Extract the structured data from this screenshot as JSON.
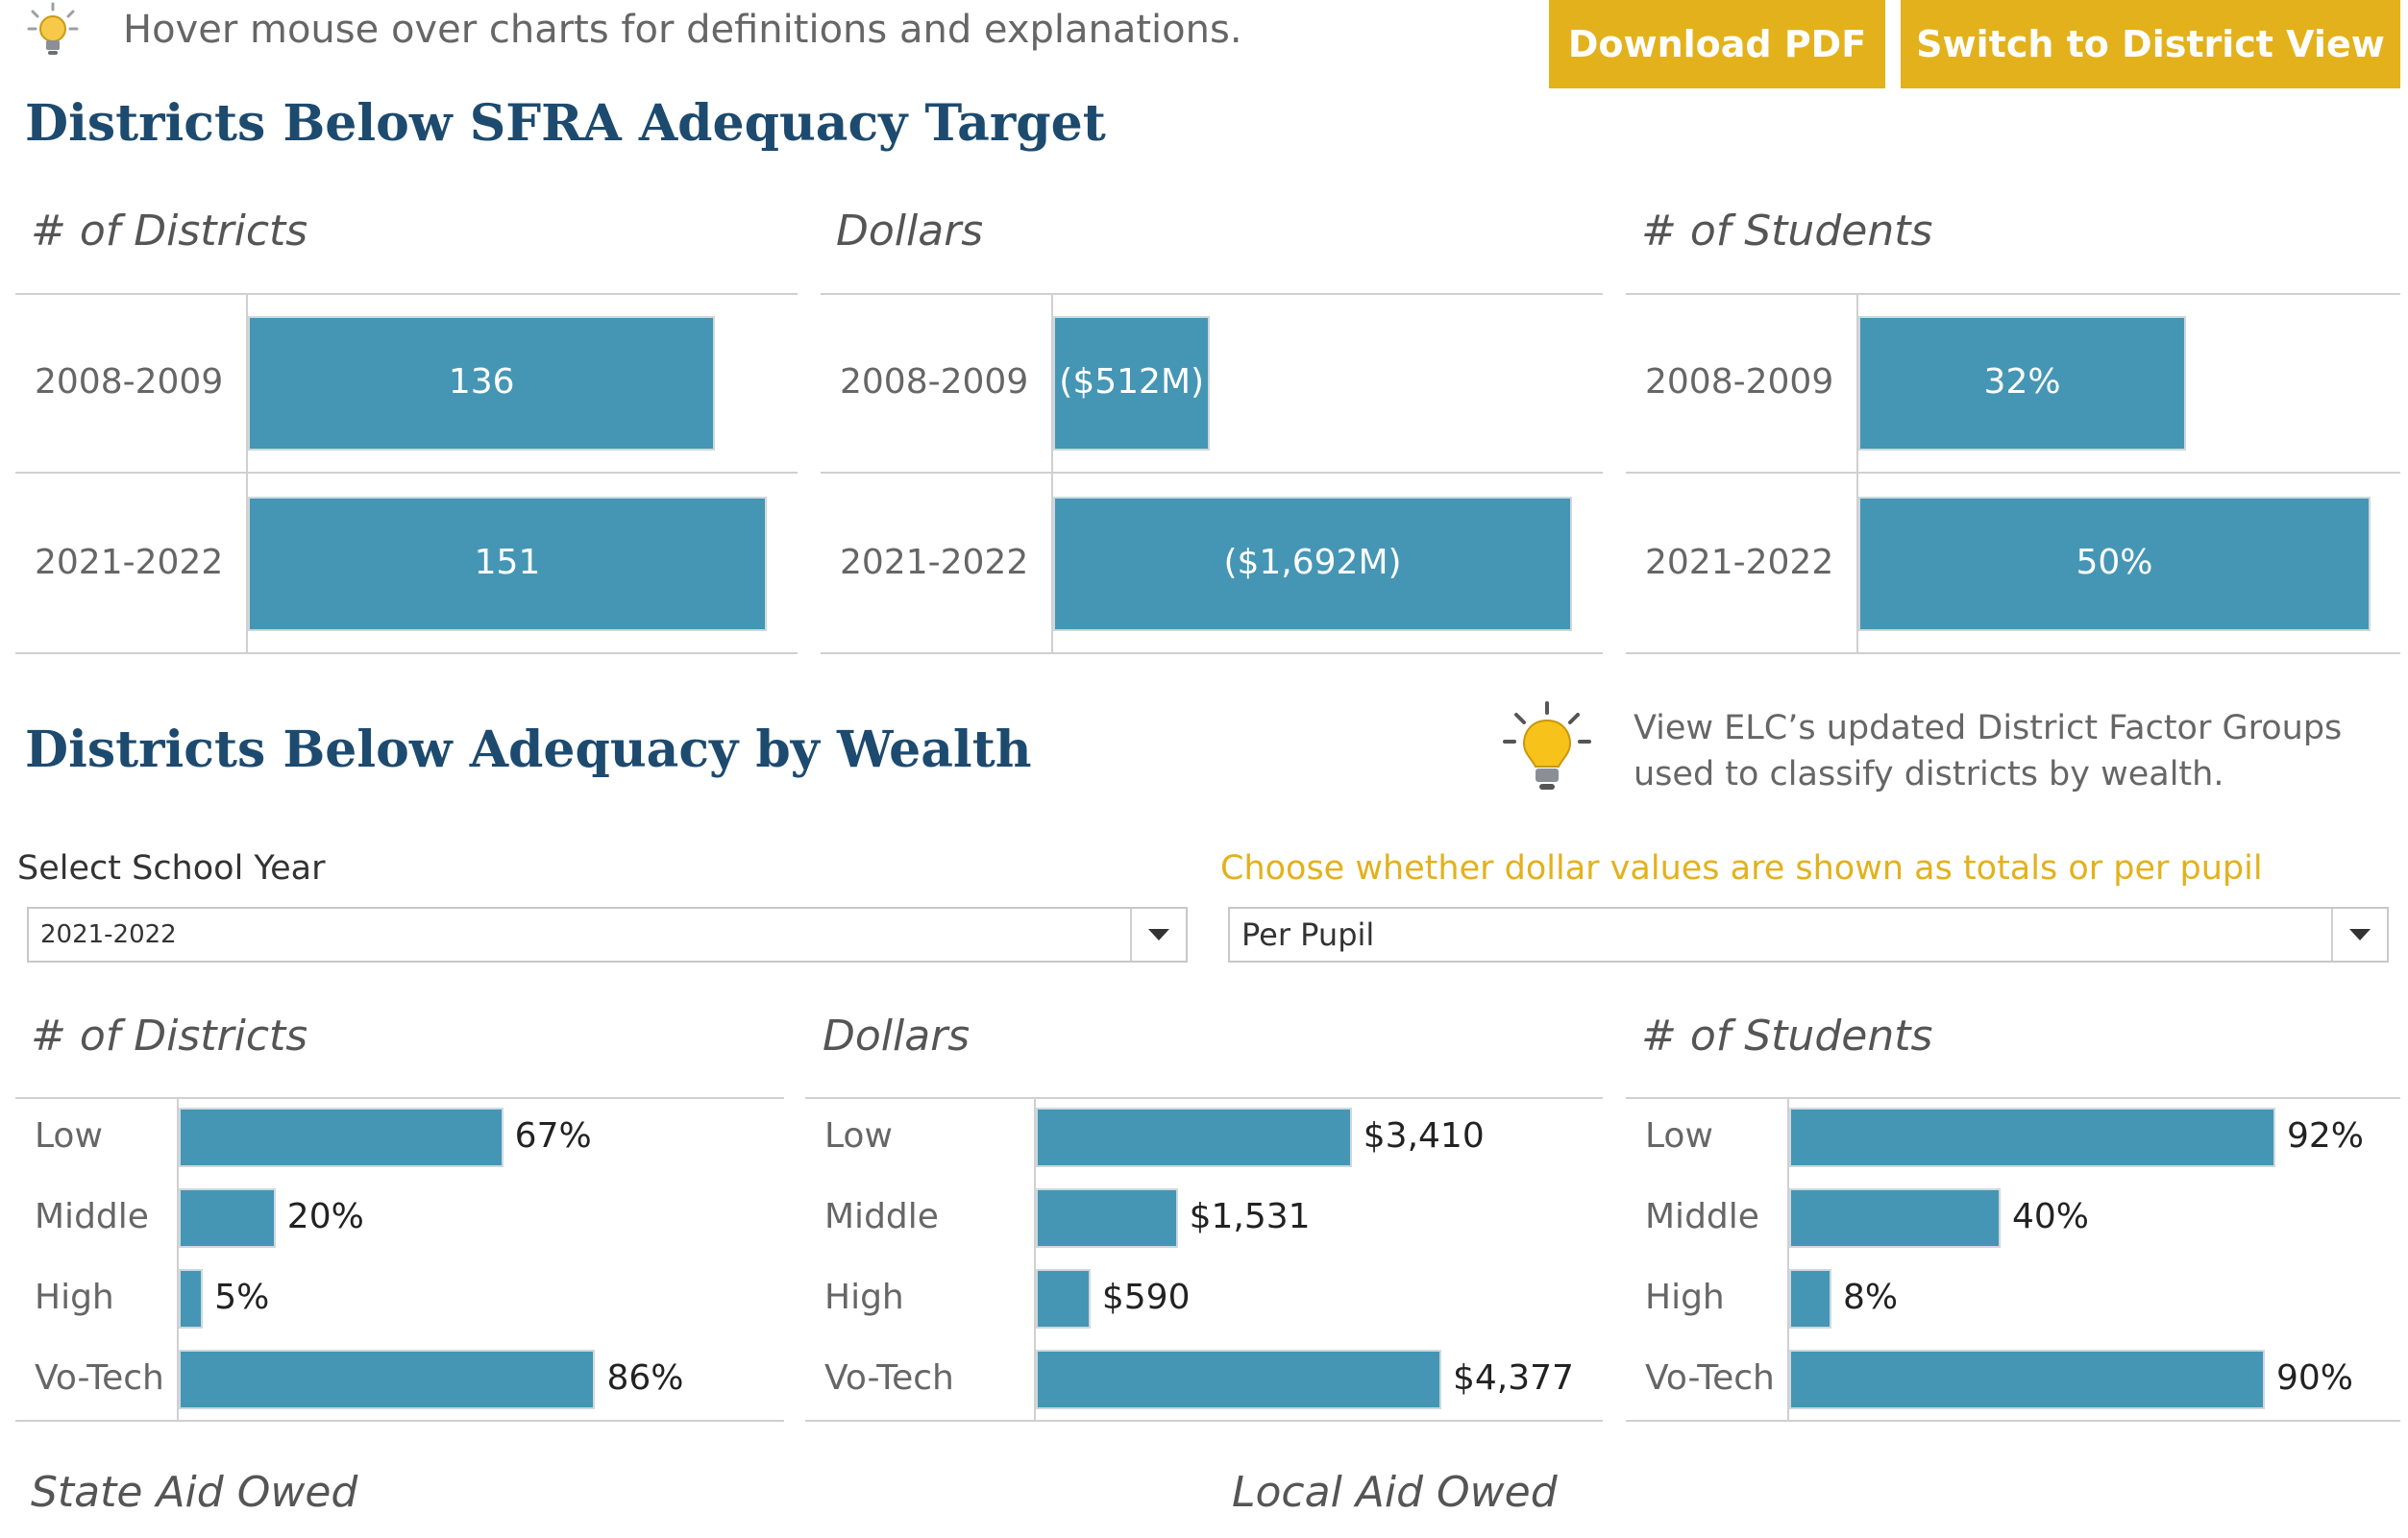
{
  "header": {
    "hint": "Hover mouse over charts for definitions and explanations.",
    "download_label": "Download PDF",
    "switch_label": "Switch to District View",
    "accent_color": "#e3b11c",
    "hint_icon": "lightbulb-icon"
  },
  "section1": {
    "title": "Districts Below SFRA Adequacy Target"
  },
  "section2": {
    "title": "Districts Below Adequacy by Wealth",
    "note": "View ELC’s updated District Factor Groups used to classify districts by wealth.",
    "note_icon": "lightbulb-icon"
  },
  "filters": {
    "year_label": "Select School Year",
    "year_value": "2021-2022",
    "mode_label": "Choose whether dollar values are shown as totals or per pupil",
    "mode_value": "Per Pupil",
    "mode_label_color": "#e3b11c"
  },
  "footer": {
    "state_aid": "State Aid Owed",
    "local_aid": "Local Aid Owed"
  },
  "bar_color": "#4596b4",
  "chart_data": [
    {
      "type": "bar",
      "orientation": "horizontal",
      "title": "# of Districts",
      "categories": [
        "2008-2009",
        "2021-2022"
      ],
      "values": [
        136,
        151
      ],
      "value_labels": [
        "136",
        "151"
      ]
    },
    {
      "type": "bar",
      "orientation": "horizontal",
      "title": "Dollars",
      "categories": [
        "2008-2009",
        "2021-2022"
      ],
      "values": [
        512,
        1692
      ],
      "value_labels": [
        "($512M)",
        "($1,692M)"
      ]
    },
    {
      "type": "bar",
      "orientation": "horizontal",
      "title": "# of Students",
      "categories": [
        "2008-2009",
        "2021-2022"
      ],
      "values": [
        32,
        50
      ],
      "value_labels": [
        "32%",
        "50%"
      ]
    },
    {
      "type": "bar",
      "orientation": "horizontal",
      "title": "# of Districts",
      "categories": [
        "Low",
        "Middle",
        "High",
        "Vo-Tech"
      ],
      "values": [
        67,
        20,
        5,
        86
      ],
      "value_labels": [
        "67%",
        "20%",
        "5%",
        "86%"
      ]
    },
    {
      "type": "bar",
      "orientation": "horizontal",
      "title": "Dollars",
      "categories": [
        "Low",
        "Middle",
        "High",
        "Vo-Tech"
      ],
      "values": [
        3410,
        1531,
        590,
        4377
      ],
      "value_labels": [
        "$3,410",
        "$1,531",
        "$590",
        "$4,377"
      ]
    },
    {
      "type": "bar",
      "orientation": "horizontal",
      "title": "# of Students",
      "categories": [
        "Low",
        "Middle",
        "High",
        "Vo-Tech"
      ],
      "values": [
        92,
        40,
        8,
        90
      ],
      "value_labels": [
        "92%",
        "40%",
        "8%",
        "90%"
      ]
    }
  ]
}
